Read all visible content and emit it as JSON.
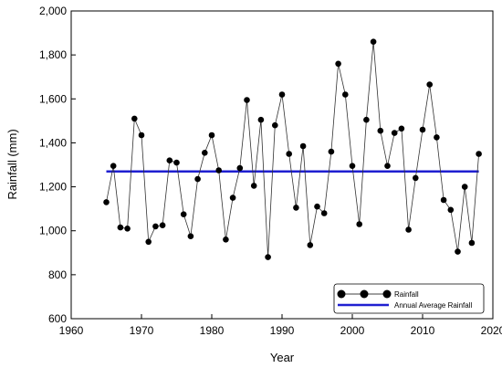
{
  "chart_data": {
    "type": "line",
    "xlabel": "Year",
    "ylabel": "Rainfall (mm)",
    "xlim": [
      1960,
      2020
    ],
    "ylim": [
      600,
      2000
    ],
    "x_ticks": [
      "1960",
      "1970",
      "1980",
      "1990",
      "2000",
      "2010",
      "2020"
    ],
    "y_ticks": [
      "600",
      "800",
      "1,000",
      "1,200",
      "1,400",
      "1,600",
      "1,800",
      "2,000"
    ],
    "series": [
      {
        "name": "Rainfall",
        "color": "#000000",
        "x": [
          1965,
          1966,
          1967,
          1968,
          1969,
          1970,
          1971,
          1972,
          1973,
          1974,
          1975,
          1976,
          1977,
          1978,
          1979,
          1980,
          1981,
          1982,
          1983,
          1984,
          1985,
          1986,
          1987,
          1988,
          1989,
          1990,
          1991,
          1992,
          1993,
          1994,
          1995,
          1996,
          1997,
          1998,
          1999,
          2000,
          2001,
          2002,
          2003,
          2004,
          2005,
          2006,
          2007,
          2008,
          2009,
          2010,
          2011,
          2012,
          2013,
          2014,
          2015,
          2016,
          2017,
          2018
        ],
        "y": [
          1130,
          1295,
          1015,
          1010,
          1510,
          1435,
          950,
          1020,
          1025,
          1320,
          1310,
          1075,
          975,
          1235,
          1355,
          1435,
          1275,
          960,
          1150,
          1285,
          1595,
          1205,
          1505,
          880,
          1480,
          1620,
          1350,
          1105,
          1385,
          935,
          1110,
          1080,
          1360,
          1760,
          1620,
          1295,
          1030,
          1505,
          1860,
          1455,
          1295,
          1445,
          1465,
          1005,
          1240,
          1460,
          1665,
          1425,
          1140,
          1095,
          905,
          1200,
          945,
          1350
        ]
      },
      {
        "name": "Annual Average Rainfall",
        "color": "#1f1fd1",
        "x": [
          1965,
          2018
        ],
        "y": [
          1270,
          1270
        ]
      }
    ],
    "legend_position": "bottom-right",
    "grid": false
  }
}
